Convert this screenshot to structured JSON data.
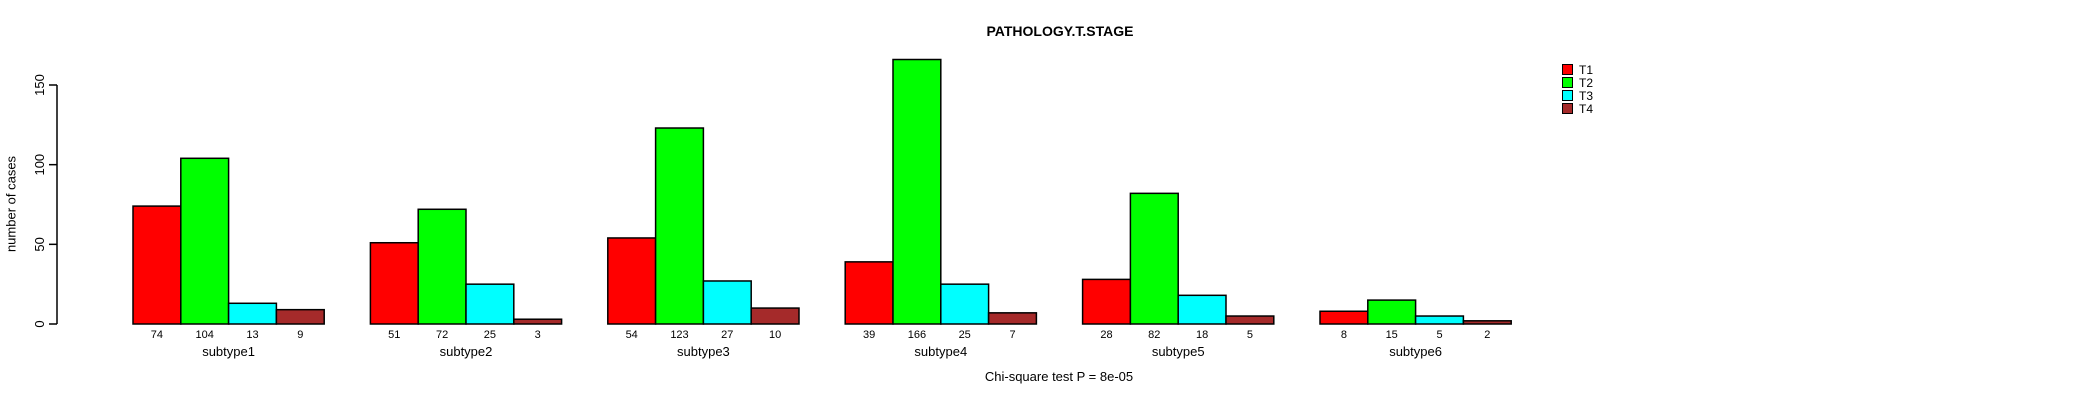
{
  "chart_data": {
    "type": "bar",
    "title": "PATHOLOGY.T.STAGE",
    "ylabel": "number of cases",
    "xlabel": "",
    "caption": "Chi-square test P = 8e-05",
    "categories": [
      "subtype1",
      "subtype2",
      "subtype3",
      "subtype4",
      "subtype5",
      "subtype6"
    ],
    "series": [
      {
        "name": "T1",
        "color": "#FF0000",
        "values": [
          74,
          51,
          54,
          39,
          28,
          8
        ]
      },
      {
        "name": "T2",
        "color": "#00FF00",
        "values": [
          104,
          72,
          123,
          166,
          82,
          15
        ]
      },
      {
        "name": "T3",
        "color": "#00FFFF",
        "values": [
          13,
          25,
          27,
          25,
          18,
          5
        ]
      },
      {
        "name": "T4",
        "color": "#A52A2A",
        "values": [
          9,
          3,
          10,
          7,
          5,
          2
        ]
      }
    ],
    "yticks": [
      0,
      50,
      100,
      150
    ],
    "ylim": [
      0,
      150
    ],
    "grid": false,
    "legend_position": "top-right",
    "bar_value_labels": true,
    "axis_color": "#000000",
    "bar_border_color": "#000000"
  }
}
